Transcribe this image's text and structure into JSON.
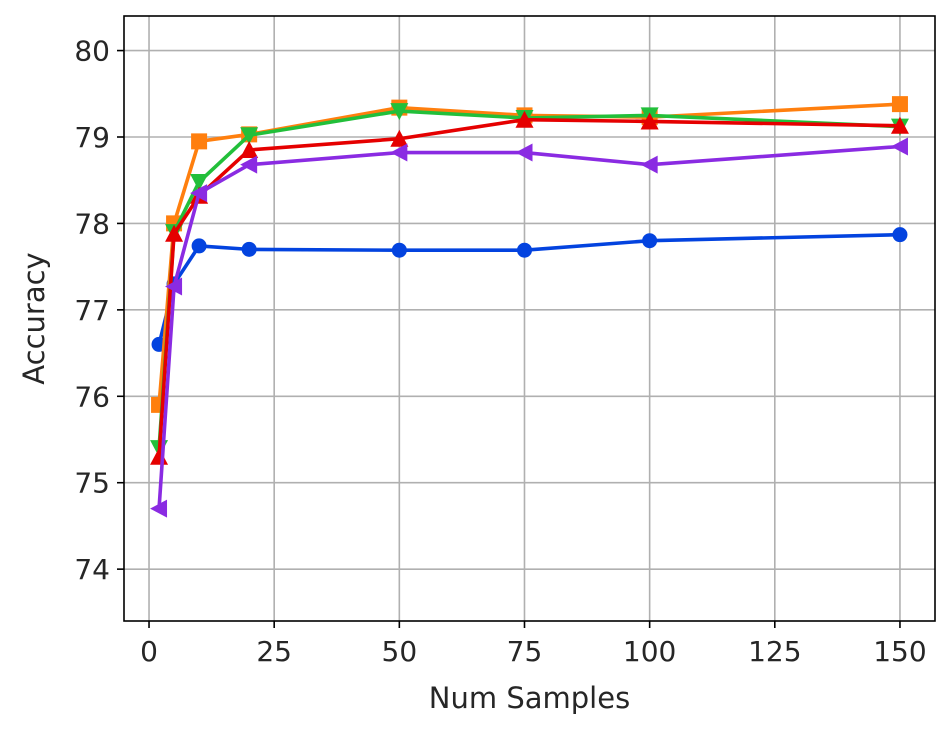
{
  "chart_data": {
    "type": "line",
    "xlabel": "Num Samples",
    "ylabel": "Accuracy",
    "xlim": [
      -5,
      157
    ],
    "ylim": [
      73.4,
      80.4
    ],
    "xticks": [
      0,
      25,
      50,
      75,
      100,
      125,
      150
    ],
    "yticks": [
      74,
      75,
      76,
      77,
      78,
      79,
      80
    ],
    "grid": true,
    "series": [
      {
        "color": "#0343df",
        "marker": "circle",
        "x": [
          2,
          5,
          10,
          20,
          50,
          75,
          100,
          150
        ],
        "y": [
          76.6,
          77.3,
          77.74,
          77.7,
          77.69,
          77.69,
          77.8,
          77.87
        ]
      },
      {
        "color": "#ff7f0e",
        "marker": "square",
        "x": [
          2,
          5,
          10,
          20,
          50,
          75,
          100,
          150
        ],
        "y": [
          75.9,
          78.0,
          78.95,
          79.03,
          79.34,
          79.25,
          79.23,
          79.38
        ]
      },
      {
        "color": "#22bf3a",
        "marker": "triangle-down",
        "x": [
          2,
          5,
          10,
          20,
          50,
          75,
          100,
          150
        ],
        "y": [
          75.4,
          77.9,
          78.48,
          79.02,
          79.3,
          79.22,
          79.25,
          79.12
        ]
      },
      {
        "color": "#e50000",
        "marker": "triangle-up",
        "x": [
          2,
          5,
          10,
          20,
          50,
          75,
          100,
          150
        ],
        "y": [
          75.3,
          77.88,
          78.32,
          78.85,
          78.98,
          79.2,
          79.18,
          79.13
        ]
      },
      {
        "color": "#8a2be2",
        "marker": "triangle-left",
        "x": [
          2,
          5,
          10,
          20,
          50,
          75,
          100,
          150
        ],
        "y": [
          74.7,
          77.27,
          78.35,
          78.68,
          78.82,
          78.82,
          78.68,
          78.89
        ]
      }
    ]
  }
}
